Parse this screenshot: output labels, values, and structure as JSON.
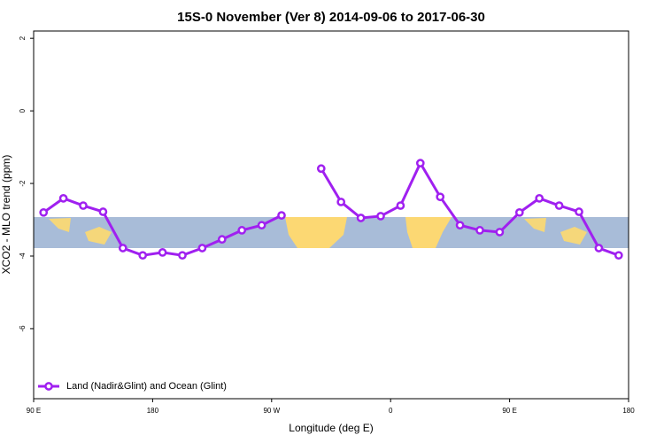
{
  "chart_data": {
    "type": "line",
    "title": "15S-0 November (Ver 8)   2014-09-06 to 2017-06-30",
    "x_label": "Longitude (deg E)",
    "y_label": "XCO2 - MLO trend (ppm)",
    "x": [
      97.5,
      112.5,
      127.5,
      142.5,
      157.5,
      172.5,
      187.5,
      202.5,
      217.5,
      232.5,
      247.5,
      262.5,
      277.5,
      292.5,
      307.5,
      322.5,
      337.5,
      352.5,
      367.5,
      382.5,
      397.5,
      412.5,
      427.5,
      442.5,
      457.5,
      472.5,
      487.5,
      502.5,
      517.5,
      532.5
    ],
    "series": [
      {
        "name": "Land (Nadir&Glint) and Ocean (Glint)",
        "color": "#a020f0",
        "values": [
          -2.8,
          -2.41,
          -2.61,
          -2.78,
          -3.78,
          -3.98,
          -3.9,
          -3.98,
          -3.78,
          -3.54,
          -3.29,
          -3.15,
          -2.88,
          null,
          -1.59,
          -2.51,
          -2.95,
          -2.9,
          -2.61,
          -1.44,
          -2.37,
          -3.15,
          -3.29,
          -3.34,
          -2.8,
          -2.41,
          -2.61,
          -2.78,
          -3.78,
          -3.98
        ]
      }
    ],
    "xlim": [
      90,
      540
    ],
    "ylim": [
      -7.93,
      2.2
    ],
    "xticks": [
      {
        "value": 90,
        "label": "90 E"
      },
      {
        "value": 180,
        "label": "180"
      },
      {
        "value": 270,
        "label": "90 W"
      },
      {
        "value": 360,
        "label": "0"
      },
      {
        "value": 450,
        "label": "90 E"
      },
      {
        "value": 540,
        "label": "180"
      }
    ],
    "yticks": [
      2,
      0,
      -2,
      -4,
      -6
    ],
    "legend": "bottom-left"
  }
}
